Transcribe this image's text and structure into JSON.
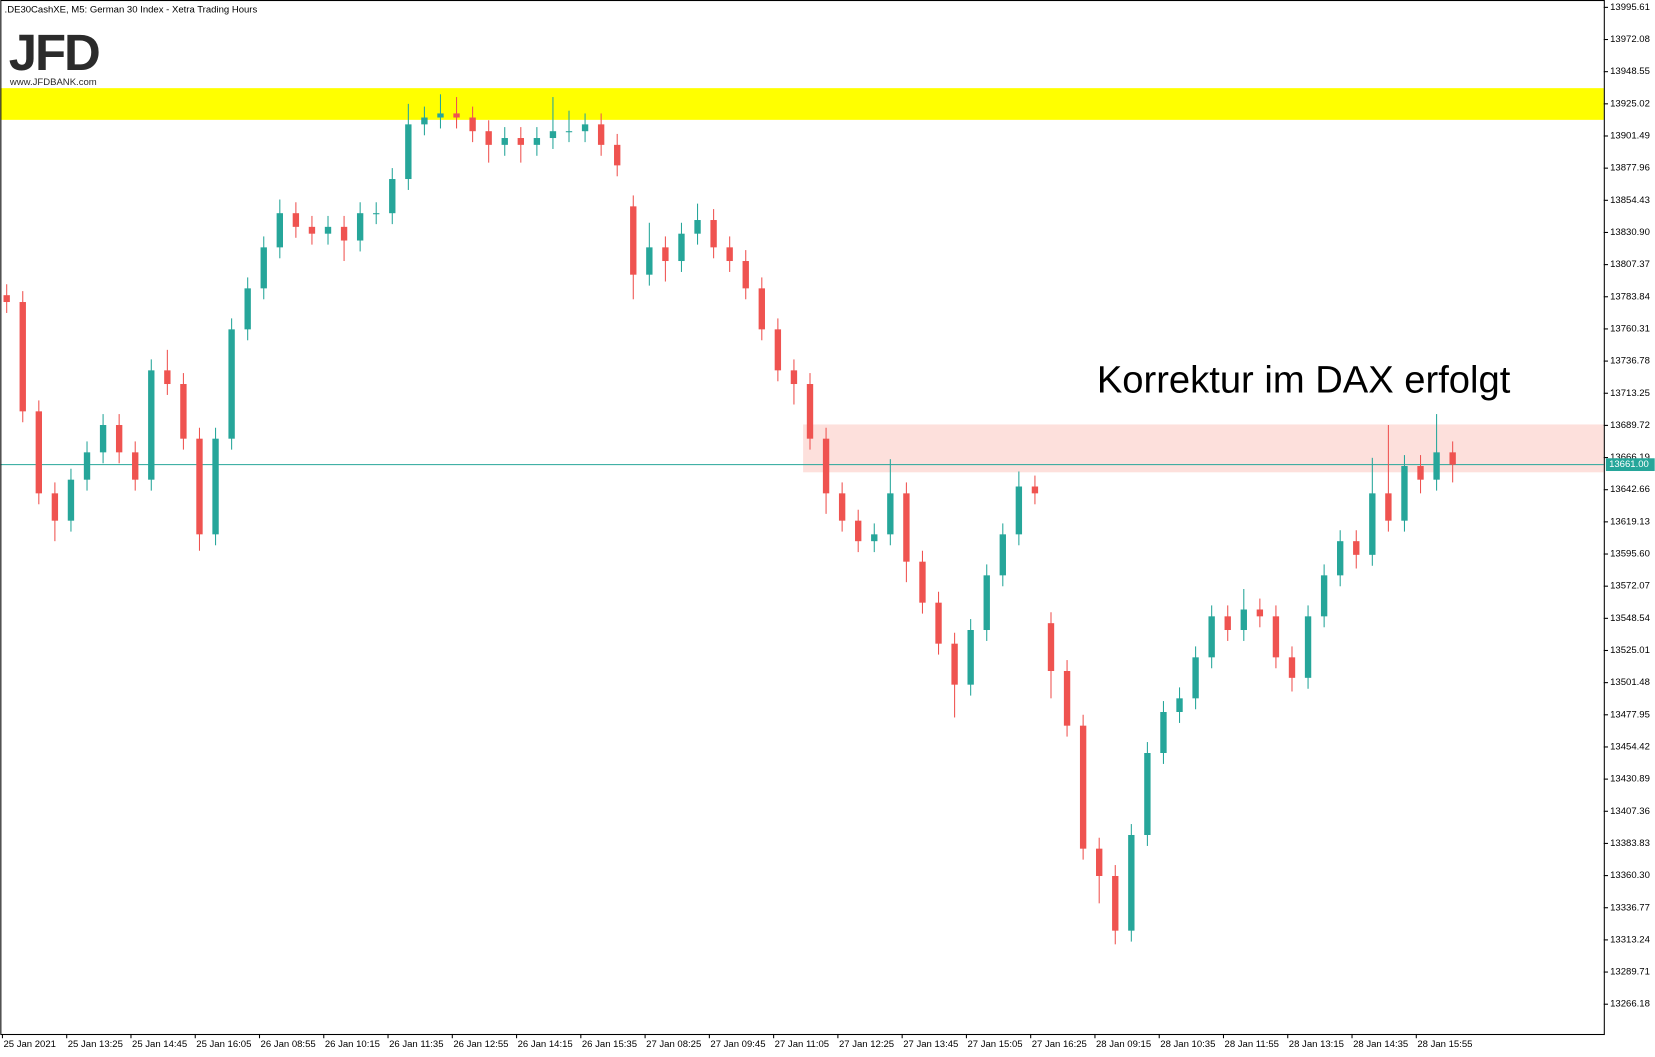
{
  "chart_data": {
    "type": "candlestick",
    "title": ".DE30CashXE, M5:  German 30 Index  - Xetra Trading Hours",
    "logo": "JFD",
    "logo_url": "www.JFDBANK.com",
    "annotation": "Korrektur im DAX erfolgt",
    "up_color": "#26a69a",
    "down_color": "#ef5350",
    "categories": [
      "25 Jan 2021",
      null,
      null,
      null,
      "25 Jan 13:25",
      null,
      null,
      null,
      "25 Jan 14:45",
      null,
      null,
      null,
      "25 Jan 16:05",
      null,
      null,
      null,
      "26 Jan 08:55",
      null,
      null,
      null,
      "26 Jan 10:15",
      null,
      null,
      null,
      "26 Jan 11:35",
      null,
      null,
      null,
      "26 Jan 12:55",
      null,
      null,
      null,
      "26 Jan 14:15",
      null,
      null,
      null,
      "26 Jan 15:35",
      null,
      null,
      null,
      "27 Jan 08:25",
      null,
      null,
      null,
      "27 Jan 09:45",
      null,
      null,
      null,
      "27 Jan 11:05",
      null,
      null,
      null,
      "27 Jan 12:25",
      null,
      null,
      null,
      "27 Jan 13:45",
      null,
      null,
      null,
      "27 Jan 15:05",
      null,
      null,
      null,
      "27 Jan 16:25",
      null,
      null,
      null,
      "28 Jan 09:15",
      null,
      null,
      null,
      "28 Jan 10:35",
      null,
      null,
      null,
      "28 Jan 11:55",
      null,
      null,
      null,
      "28 Jan 13:15",
      null,
      null,
      null,
      "28 Jan 14:35",
      null,
      null,
      null,
      "28 Jan 15:55",
      null,
      null
    ],
    "open": [
      13785,
      13780,
      13700,
      13640,
      13620,
      13650,
      13670,
      13690,
      13670,
      13650,
      13730,
      13720,
      13680,
      13610,
      13680,
      13760,
      13790,
      13820,
      13845,
      13835,
      13830,
      13835,
      13825,
      13845,
      13845,
      13870,
      13910,
      13915,
      13918,
      13915,
      13905,
      13895,
      13900,
      13895,
      13900,
      13905,
      13905,
      13910,
      13895,
      13850,
      13800,
      13820,
      13810,
      13830,
      13840,
      13820,
      13810,
      13790,
      13760,
      13730,
      13720,
      13680,
      13640,
      13620,
      13605,
      13610,
      13640,
      13590,
      13560,
      13530,
      13500,
      13540,
      13580,
      13610,
      13645,
      13545,
      13510,
      13470,
      13380,
      13360,
      13320,
      13390,
      13450,
      13480,
      13490,
      13520,
      13550,
      13540,
      13555,
      13550,
      13520,
      13505,
      13550,
      13580,
      13605,
      13595,
      13640,
      13620,
      13660,
      13650,
      13670
    ],
    "high": [
      13793,
      13788,
      13708,
      13648,
      13658,
      13678,
      13698,
      13698,
      13678,
      13738,
      13745,
      13728,
      13688,
      13688,
      13768,
      13798,
      13828,
      13855,
      13853,
      13843,
      13843,
      13843,
      13853,
      13853,
      13878,
      13925,
      13923,
      13932,
      13930,
      13923,
      13913,
      13908,
      13908,
      13908,
      13930,
      13920,
      13918,
      13918,
      13903,
      13858,
      13838,
      13828,
      13838,
      13852,
      13848,
      13828,
      13818,
      13798,
      13768,
      13738,
      13728,
      13688,
      13648,
      13628,
      13618,
      13665,
      13648,
      13598,
      13568,
      13538,
      13548,
      13588,
      13618,
      13656,
      13653,
      13553,
      13518,
      13478,
      13388,
      13368,
      13398,
      13458,
      13488,
      13498,
      13528,
      13558,
      13558,
      13570,
      13563,
      13558,
      13528,
      13558,
      13588,
      13613,
      13613,
      13666,
      13690,
      13668,
      13668,
      13698,
      13678
    ],
    "low": [
      13772,
      13692,
      13632,
      13605,
      13612,
      13642,
      13662,
      13662,
      13642,
      13642,
      13712,
      13672,
      13598,
      13602,
      13672,
      13752,
      13782,
      13812,
      13827,
      13822,
      13822,
      13810,
      13817,
      13837,
      13837,
      13862,
      13902,
      13907,
      13907,
      13897,
      13882,
      13887,
      13882,
      13887,
      13892,
      13897,
      13897,
      13887,
      13872,
      13782,
      13792,
      13795,
      13802,
      13822,
      13812,
      13802,
      13782,
      13752,
      13722,
      13705,
      13672,
      13625,
      13612,
      13597,
      13597,
      13602,
      13575,
      13552,
      13522,
      13476,
      13492,
      13532,
      13572,
      13602,
      13632,
      13490,
      13462,
      13372,
      13340,
      13310,
      13312,
      13382,
      13442,
      13472,
      13482,
      13512,
      13532,
      13532,
      13542,
      13512,
      13495,
      13497,
      13542,
      13572,
      13585,
      13587,
      13612,
      13612,
      13640,
      13642,
      13648
    ],
    "close": [
      13780,
      13700,
      13640,
      13620,
      13650,
      13670,
      13690,
      13670,
      13650,
      13730,
      13720,
      13680,
      13610,
      13680,
      13760,
      13790,
      13820,
      13845,
      13835,
      13830,
      13835,
      13825,
      13845,
      13845,
      13870,
      13910,
      13915,
      13918,
      13915,
      13905,
      13895,
      13900,
      13895,
      13900,
      13905,
      13905,
      13910,
      13895,
      13880,
      13800,
      13820,
      13810,
      13830,
      13840,
      13820,
      13810,
      13790,
      13760,
      13730,
      13720,
      13680,
      13640,
      13620,
      13605,
      13610,
      13640,
      13590,
      13560,
      13530,
      13500,
      13540,
      13580,
      13610,
      13645,
      13640,
      13510,
      13470,
      13380,
      13360,
      13320,
      13390,
      13450,
      13480,
      13490,
      13520,
      13550,
      13540,
      13555,
      13550,
      13520,
      13505,
      13550,
      13580,
      13605,
      13595,
      13640,
      13620,
      13660,
      13650,
      13670,
      13661
    ],
    "ylim": [
      13244.4,
      14001
    ],
    "yticks": [
      13995.61,
      13972.08,
      13948.55,
      13925.02,
      13901.49,
      13877.96,
      13854.43,
      {
        "value": 13830.9,
        "label": "13830.90"
      },
      13807.37,
      13783.84,
      13760.31,
      13736.78,
      13713.25,
      13689.72,
      13666.19,
      13642.66,
      13619.13,
      {
        "value": 13595.6,
        "label": "13595.60"
      },
      13572.07,
      13548.54,
      13525.01,
      13501.48,
      13477.95,
      13454.42,
      13430.89,
      13407.36,
      13383.83,
      {
        "value": 13360.3,
        "label": "13360.30"
      },
      13336.77,
      13313.24,
      13289.71,
      13266.18
    ],
    "zones": [
      {
        "low": 13913.3,
        "high": 13936.5,
        "color": "#ffff00"
      },
      {
        "low": 13655.4,
        "high": 13690.4,
        "color": "#fde0dc"
      }
    ],
    "price_line": {
      "value": 13661,
      "label": "13661.00",
      "color": "#26a69a"
    }
  }
}
